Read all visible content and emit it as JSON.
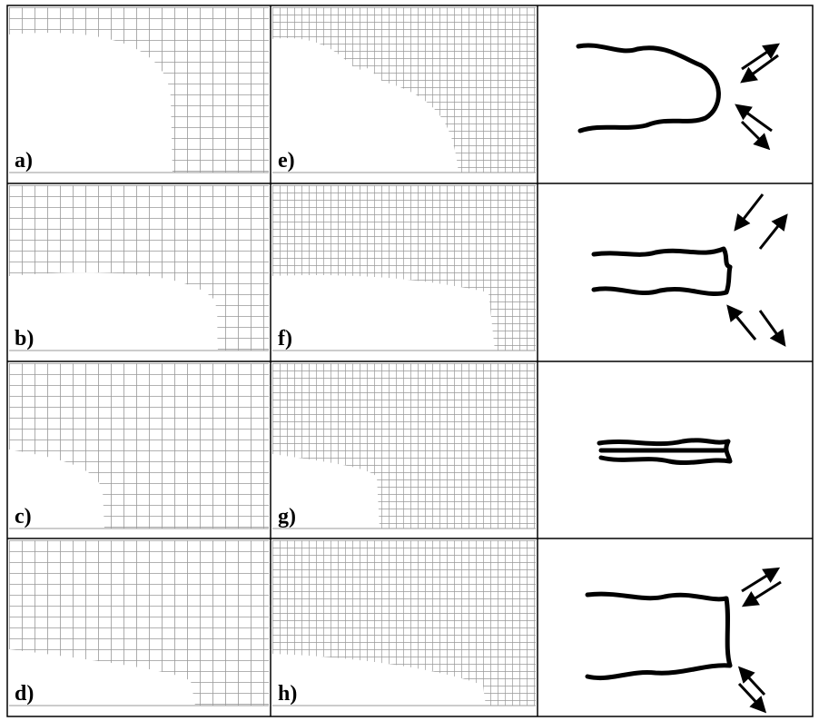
{
  "table": {
    "rows": [
      [
        "a)",
        "e)"
      ],
      [
        "b)",
        "f)"
      ],
      [
        "c)",
        "g)"
      ],
      [
        "d)",
        "h)"
      ]
    ]
  }
}
